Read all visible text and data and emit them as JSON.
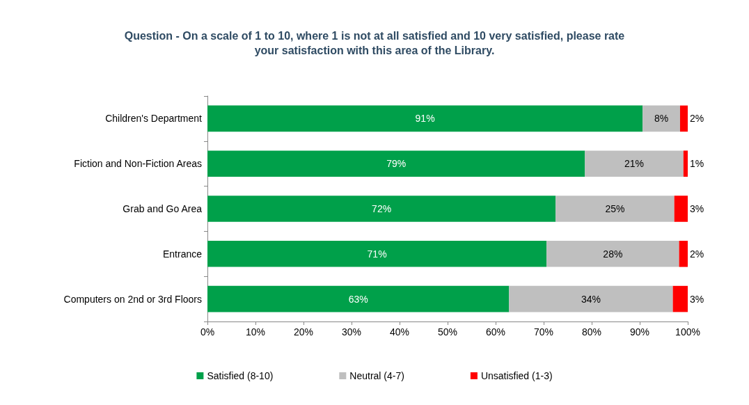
{
  "chart_data": {
    "type": "bar",
    "orientation": "horizontal",
    "stacked": true,
    "title": "Question - On a scale of 1 to 10, where 1 is not at all satisfied and 10 very satisfied, please rate\nyour satisfaction with this area of the Library.",
    "categories": [
      "Children's Department",
      "Fiction and Non-Fiction Areas",
      "Grab and Go Area",
      "Entrance",
      "Computers on 2nd or 3rd Floors"
    ],
    "series": [
      {
        "name": "Satisfied (8-10)",
        "color": "#00a04a",
        "values": [
          90.6,
          78.6,
          72.5,
          70.6,
          62.8
        ],
        "value_labels": [
          "91%",
          "79%",
          "72%",
          "71%",
          "63%"
        ]
      },
      {
        "name": "Neutral (4-7)",
        "color": "#bfbfbf",
        "values": [
          7.8,
          20.5,
          24.7,
          27.6,
          34.1
        ],
        "value_labels": [
          "8%",
          "21%",
          "25%",
          "28%",
          "34%"
        ]
      },
      {
        "name": "Unsatisfied (1-3)",
        "color": "#ff0000",
        "values": [
          1.6,
          0.9,
          2.8,
          1.8,
          3.1
        ],
        "value_labels": [
          "2%",
          "1%",
          "3%",
          "2%",
          "3%"
        ]
      }
    ],
    "xlim": [
      0,
      100
    ],
    "xticks": [
      {
        "value": 0,
        "label": "0%"
      },
      {
        "value": 10,
        "label": "10%"
      },
      {
        "value": 20,
        "label": "20%"
      },
      {
        "value": 30,
        "label": "30%"
      },
      {
        "value": 40,
        "label": "40%"
      },
      {
        "value": 50,
        "label": "50%"
      },
      {
        "value": 60,
        "label": "60%"
      },
      {
        "value": 70,
        "label": "70%"
      },
      {
        "value": 80,
        "label": "80%"
      },
      {
        "value": 90,
        "label": "90%"
      },
      {
        "value": 100,
        "label": "100%"
      }
    ],
    "grid": false,
    "legend": "bottom"
  }
}
